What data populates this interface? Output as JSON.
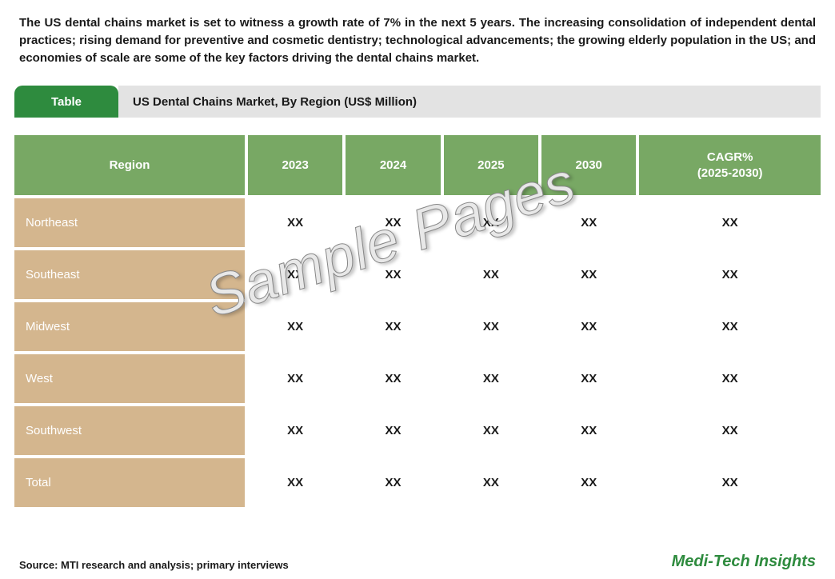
{
  "intro_text": "The US dental chains market is set to witness a growth rate of 7% in the next 5 years. The increasing consolidation of independent dental practices; rising demand for preventive and cosmetic dentistry; technological advancements; the growing elderly population in the US; and economies of scale are some of the key factors driving the dental chains market.",
  "title_bar": {
    "tab_label": "Table",
    "title": "US Dental Chains Market, By Region (US$ Million)"
  },
  "table": {
    "type": "table",
    "columns": [
      "Region",
      "2023",
      "2024",
      "2025",
      "2030",
      "CAGR%\n(2025-2030)"
    ],
    "rows": [
      [
        "Northeast",
        "XX",
        "XX",
        "XX",
        "XX",
        "XX"
      ],
      [
        "Southeast",
        "XX",
        "XX",
        "XX",
        "XX",
        "XX"
      ],
      [
        "Midwest",
        "XX",
        "XX",
        "XX",
        "XX",
        "XX"
      ],
      [
        "West",
        "XX",
        "XX",
        "XX",
        "XX",
        "XX"
      ],
      [
        "Southwest",
        "XX",
        "XX",
        "XX",
        "XX",
        "XX"
      ],
      [
        "Total",
        "XX",
        "XX",
        "XX",
        "XX",
        "XX"
      ]
    ],
    "header_bg": "#78a864",
    "header_fg": "#ffffff",
    "row_label_bg": "#d4b68e",
    "row_label_fg": "#ffffff",
    "cell_fg": "#1a1a1a",
    "col_widths": [
      "290px",
      "auto",
      "auto",
      "auto",
      "auto",
      "auto"
    ],
    "font_size": 15
  },
  "watermark": "Sample Pages",
  "footer": {
    "source": "Source: MTI research and analysis; primary interviews",
    "brand": "Medi-Tech Insights"
  },
  "colors": {
    "accent_green": "#2e8b3e",
    "header_green": "#78a864",
    "title_grey": "#e3e3e3",
    "tan": "#d4b68e",
    "text": "#1a1a1a",
    "background": "#ffffff"
  }
}
